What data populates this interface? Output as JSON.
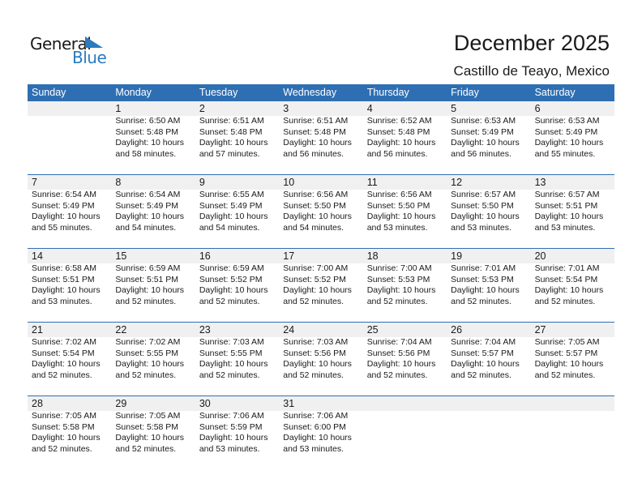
{
  "logo": {
    "text_top": "General",
    "text_bottom": "Blue",
    "accent": "#2a7bc0"
  },
  "title": "December 2025",
  "location": "Castillo de Teayo, Mexico",
  "colors": {
    "header": "#2e6fb3",
    "day_band": "#f0f0f0"
  },
  "weekdays": [
    "Sunday",
    "Monday",
    "Tuesday",
    "Wednesday",
    "Thursday",
    "Friday",
    "Saturday"
  ],
  "weeks": [
    [
      null,
      {
        "day": "1",
        "sunrise": "Sunrise: 6:50 AM",
        "sunset": "Sunset: 5:48 PM",
        "daylight1": "Daylight: 10 hours",
        "daylight2": "and 58 minutes."
      },
      {
        "day": "2",
        "sunrise": "Sunrise: 6:51 AM",
        "sunset": "Sunset: 5:48 PM",
        "daylight1": "Daylight: 10 hours",
        "daylight2": "and 57 minutes."
      },
      {
        "day": "3",
        "sunrise": "Sunrise: 6:51 AM",
        "sunset": "Sunset: 5:48 PM",
        "daylight1": "Daylight: 10 hours",
        "daylight2": "and 56 minutes."
      },
      {
        "day": "4",
        "sunrise": "Sunrise: 6:52 AM",
        "sunset": "Sunset: 5:48 PM",
        "daylight1": "Daylight: 10 hours",
        "daylight2": "and 56 minutes."
      },
      {
        "day": "5",
        "sunrise": "Sunrise: 6:53 AM",
        "sunset": "Sunset: 5:49 PM",
        "daylight1": "Daylight: 10 hours",
        "daylight2": "and 56 minutes."
      },
      {
        "day": "6",
        "sunrise": "Sunrise: 6:53 AM",
        "sunset": "Sunset: 5:49 PM",
        "daylight1": "Daylight: 10 hours",
        "daylight2": "and 55 minutes."
      }
    ],
    [
      {
        "day": "7",
        "sunrise": "Sunrise: 6:54 AM",
        "sunset": "Sunset: 5:49 PM",
        "daylight1": "Daylight: 10 hours",
        "daylight2": "and 55 minutes."
      },
      {
        "day": "8",
        "sunrise": "Sunrise: 6:54 AM",
        "sunset": "Sunset: 5:49 PM",
        "daylight1": "Daylight: 10 hours",
        "daylight2": "and 54 minutes."
      },
      {
        "day": "9",
        "sunrise": "Sunrise: 6:55 AM",
        "sunset": "Sunset: 5:49 PM",
        "daylight1": "Daylight: 10 hours",
        "daylight2": "and 54 minutes."
      },
      {
        "day": "10",
        "sunrise": "Sunrise: 6:56 AM",
        "sunset": "Sunset: 5:50 PM",
        "daylight1": "Daylight: 10 hours",
        "daylight2": "and 54 minutes."
      },
      {
        "day": "11",
        "sunrise": "Sunrise: 6:56 AM",
        "sunset": "Sunset: 5:50 PM",
        "daylight1": "Daylight: 10 hours",
        "daylight2": "and 53 minutes."
      },
      {
        "day": "12",
        "sunrise": "Sunrise: 6:57 AM",
        "sunset": "Sunset: 5:50 PM",
        "daylight1": "Daylight: 10 hours",
        "daylight2": "and 53 minutes."
      },
      {
        "day": "13",
        "sunrise": "Sunrise: 6:57 AM",
        "sunset": "Sunset: 5:51 PM",
        "daylight1": "Daylight: 10 hours",
        "daylight2": "and 53 minutes."
      }
    ],
    [
      {
        "day": "14",
        "sunrise": "Sunrise: 6:58 AM",
        "sunset": "Sunset: 5:51 PM",
        "daylight1": "Daylight: 10 hours",
        "daylight2": "and 53 minutes."
      },
      {
        "day": "15",
        "sunrise": "Sunrise: 6:59 AM",
        "sunset": "Sunset: 5:51 PM",
        "daylight1": "Daylight: 10 hours",
        "daylight2": "and 52 minutes."
      },
      {
        "day": "16",
        "sunrise": "Sunrise: 6:59 AM",
        "sunset": "Sunset: 5:52 PM",
        "daylight1": "Daylight: 10 hours",
        "daylight2": "and 52 minutes."
      },
      {
        "day": "17",
        "sunrise": "Sunrise: 7:00 AM",
        "sunset": "Sunset: 5:52 PM",
        "daylight1": "Daylight: 10 hours",
        "daylight2": "and 52 minutes."
      },
      {
        "day": "18",
        "sunrise": "Sunrise: 7:00 AM",
        "sunset": "Sunset: 5:53 PM",
        "daylight1": "Daylight: 10 hours",
        "daylight2": "and 52 minutes."
      },
      {
        "day": "19",
        "sunrise": "Sunrise: 7:01 AM",
        "sunset": "Sunset: 5:53 PM",
        "daylight1": "Daylight: 10 hours",
        "daylight2": "and 52 minutes."
      },
      {
        "day": "20",
        "sunrise": "Sunrise: 7:01 AM",
        "sunset": "Sunset: 5:54 PM",
        "daylight1": "Daylight: 10 hours",
        "daylight2": "and 52 minutes."
      }
    ],
    [
      {
        "day": "21",
        "sunrise": "Sunrise: 7:02 AM",
        "sunset": "Sunset: 5:54 PM",
        "daylight1": "Daylight: 10 hours",
        "daylight2": "and 52 minutes."
      },
      {
        "day": "22",
        "sunrise": "Sunrise: 7:02 AM",
        "sunset": "Sunset: 5:55 PM",
        "daylight1": "Daylight: 10 hours",
        "daylight2": "and 52 minutes."
      },
      {
        "day": "23",
        "sunrise": "Sunrise: 7:03 AM",
        "sunset": "Sunset: 5:55 PM",
        "daylight1": "Daylight: 10 hours",
        "daylight2": "and 52 minutes."
      },
      {
        "day": "24",
        "sunrise": "Sunrise: 7:03 AM",
        "sunset": "Sunset: 5:56 PM",
        "daylight1": "Daylight: 10 hours",
        "daylight2": "and 52 minutes."
      },
      {
        "day": "25",
        "sunrise": "Sunrise: 7:04 AM",
        "sunset": "Sunset: 5:56 PM",
        "daylight1": "Daylight: 10 hours",
        "daylight2": "and 52 minutes."
      },
      {
        "day": "26",
        "sunrise": "Sunrise: 7:04 AM",
        "sunset": "Sunset: 5:57 PM",
        "daylight1": "Daylight: 10 hours",
        "daylight2": "and 52 minutes."
      },
      {
        "day": "27",
        "sunrise": "Sunrise: 7:05 AM",
        "sunset": "Sunset: 5:57 PM",
        "daylight1": "Daylight: 10 hours",
        "daylight2": "and 52 minutes."
      }
    ],
    [
      {
        "day": "28",
        "sunrise": "Sunrise: 7:05 AM",
        "sunset": "Sunset: 5:58 PM",
        "daylight1": "Daylight: 10 hours",
        "daylight2": "and 52 minutes."
      },
      {
        "day": "29",
        "sunrise": "Sunrise: 7:05 AM",
        "sunset": "Sunset: 5:58 PM",
        "daylight1": "Daylight: 10 hours",
        "daylight2": "and 52 minutes."
      },
      {
        "day": "30",
        "sunrise": "Sunrise: 7:06 AM",
        "sunset": "Sunset: 5:59 PM",
        "daylight1": "Daylight: 10 hours",
        "daylight2": "and 53 minutes."
      },
      {
        "day": "31",
        "sunrise": "Sunrise: 7:06 AM",
        "sunset": "Sunset: 6:00 PM",
        "daylight1": "Daylight: 10 hours",
        "daylight2": "and 53 minutes."
      },
      null,
      null,
      null
    ]
  ]
}
